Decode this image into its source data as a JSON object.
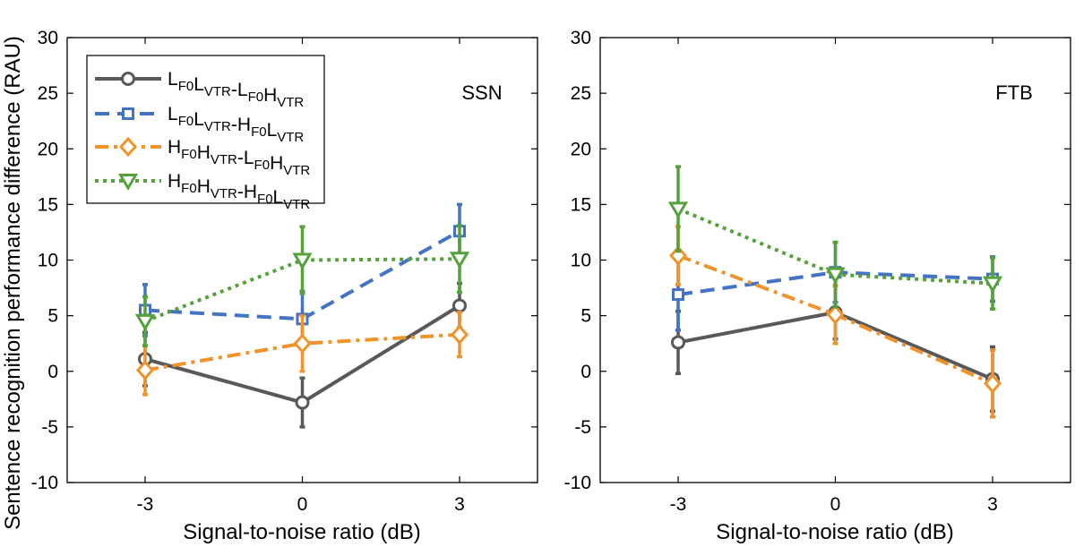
{
  "figure": {
    "ylabel": "Sentence recognition performance difference (RAU)",
    "xlabel": "Signal-to-noise ratio (dB)"
  },
  "legend": [
    {
      "parts": [
        [
          "L",
          ""
        ],
        [
          "",
          "F0"
        ],
        [
          "L",
          ""
        ],
        [
          "",
          "VTR"
        ],
        [
          "-L",
          ""
        ],
        [
          "",
          "F0"
        ],
        [
          "H",
          ""
        ],
        [
          "",
          "VTR"
        ]
      ]
    },
    {
      "parts": [
        [
          "L",
          ""
        ],
        [
          "",
          "F0"
        ],
        [
          "L",
          ""
        ],
        [
          "",
          "VTR"
        ],
        [
          "-H",
          ""
        ],
        [
          "",
          "F0"
        ],
        [
          "L",
          ""
        ],
        [
          "",
          "VTR"
        ]
      ]
    },
    {
      "parts": [
        [
          "H",
          ""
        ],
        [
          "",
          "F0"
        ],
        [
          "H",
          ""
        ],
        [
          "",
          "VTR"
        ],
        [
          "-L",
          ""
        ],
        [
          "",
          "F0"
        ],
        [
          "H",
          ""
        ],
        [
          "",
          "VTR"
        ]
      ]
    },
    {
      "parts": [
        [
          "H",
          ""
        ],
        [
          "",
          "F0"
        ],
        [
          "H",
          ""
        ],
        [
          "",
          "VTR"
        ],
        [
          "-H",
          ""
        ],
        [
          "",
          "F0"
        ],
        [
          "L",
          ""
        ],
        [
          "",
          "VTR"
        ]
      ]
    }
  ],
  "colors": [
    "#595959",
    "#4472c4",
    "#f0932b",
    "#55a13a"
  ],
  "chart_data": [
    {
      "type": "line",
      "panel_label": "SSN",
      "xlabel": "Signal-to-noise ratio (dB)",
      "ylabel": "Sentence recognition performance difference (RAU)",
      "x": [
        -3,
        0,
        3
      ],
      "x_tick_labels": [
        "-3",
        "0",
        "3"
      ],
      "ylim": [
        -10,
        30
      ],
      "y_ticks": [
        -10,
        -5,
        0,
        5,
        10,
        15,
        20,
        25,
        30
      ],
      "y_tick_labels": [
        "-10",
        "-5",
        "0",
        "5",
        "10",
        "15",
        "20",
        "25",
        "30"
      ],
      "series": [
        {
          "name": "LF0LVTR-LF0HVTR",
          "values": [
            1.1,
            -2.8,
            5.9
          ],
          "error": [
            2.4,
            2.2,
            2.0
          ]
        },
        {
          "name": "LF0LVTR-HF0LVTR",
          "values": [
            5.5,
            4.7,
            12.6
          ],
          "error": [
            2.3,
            2.5,
            2.4
          ]
        },
        {
          "name": "HF0HVTR-LF0HVTR",
          "values": [
            0.1,
            2.5,
            3.3
          ],
          "error": [
            2.2,
            2.5,
            2.0
          ]
        },
        {
          "name": "HF0HVTR-HF0LVTR",
          "values": [
            4.5,
            10.0,
            10.1
          ],
          "error": [
            2.2,
            3.0,
            3.0
          ]
        }
      ]
    },
    {
      "type": "line",
      "panel_label": "FTB",
      "xlabel": "Signal-to-noise ratio (dB)",
      "ylabel": "",
      "x": [
        -3,
        0,
        3
      ],
      "x_tick_labels": [
        "-3",
        "0",
        "3"
      ],
      "ylim": [
        -10,
        30
      ],
      "y_ticks": [
        -10,
        -5,
        0,
        5,
        10,
        15,
        20,
        25,
        30
      ],
      "y_tick_labels": [
        "-10",
        "-5",
        "0",
        "5",
        "10",
        "15",
        "20",
        "25",
        "30"
      ],
      "series": [
        {
          "name": "LF0LVTR-LF0HVTR",
          "values": [
            2.6,
            5.3,
            -0.7
          ],
          "error": [
            2.8,
            2.4,
            2.9
          ]
        },
        {
          "name": "LF0LVTR-HF0LVTR",
          "values": [
            6.9,
            8.9,
            8.3
          ],
          "error": [
            3.2,
            2.7,
            2.0
          ]
        },
        {
          "name": "HF0HVTR-LF0HVTR",
          "values": [
            10.4,
            5.1,
            -1.1
          ],
          "error": [
            2.6,
            2.6,
            3.0
          ]
        },
        {
          "name": "HF0HVTR-HF0LVTR",
          "values": [
            14.6,
            8.7,
            7.9
          ],
          "error": [
            3.8,
            2.9,
            2.3
          ]
        }
      ]
    }
  ]
}
